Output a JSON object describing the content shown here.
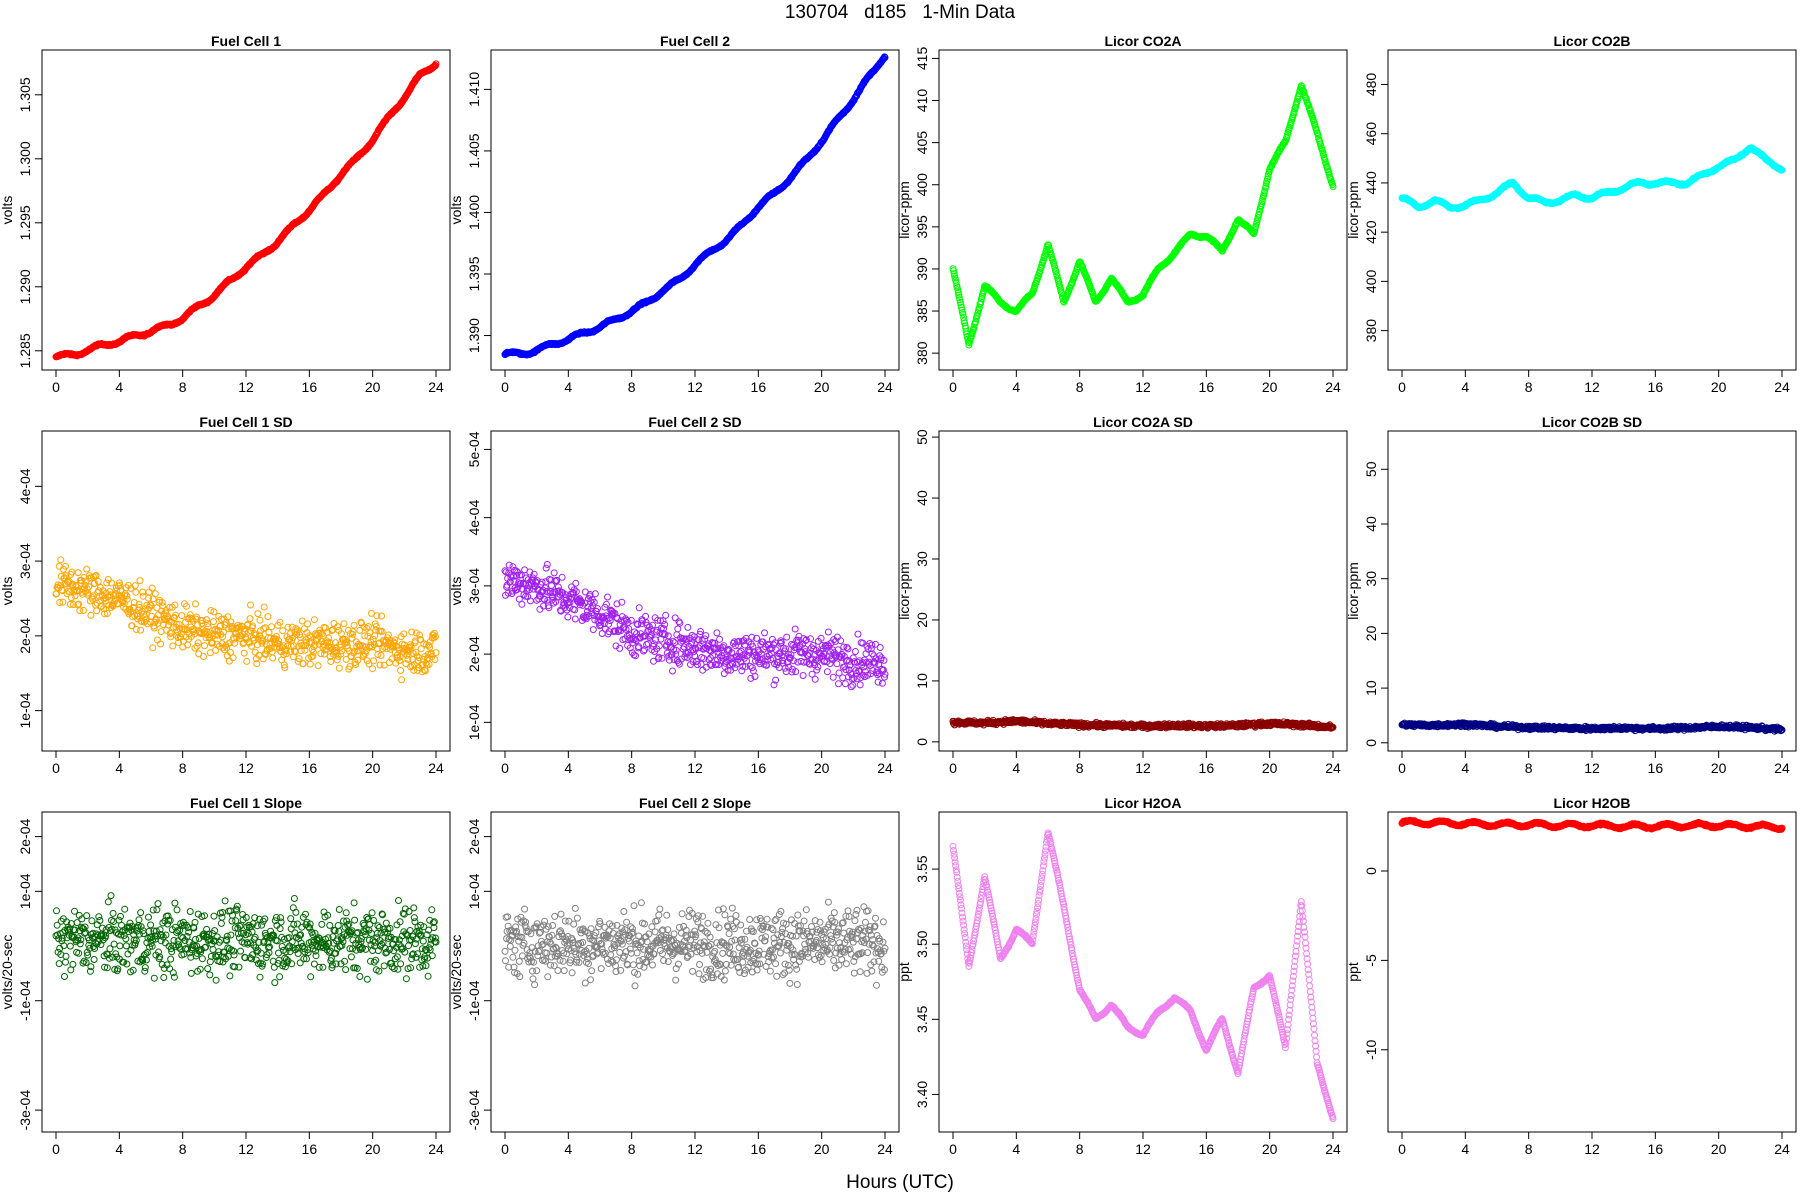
{
  "figure": {
    "title": "130704   d185   1-Min Data",
    "xlabel": "Hours (UTC)"
  },
  "chart_data": [
    {
      "id": "fc1",
      "type": "scatter",
      "title": "Fuel Cell 1",
      "ylabel": "volts",
      "color": "#ff0000",
      "xlim": [
        0,
        24
      ],
      "xticks": [
        "0",
        "4",
        "8",
        "12",
        "16",
        "20",
        "24"
      ],
      "ylim": [
        1.2835,
        1.3085
      ],
      "yticks": [
        1.285,
        1.29,
        1.295,
        1.3,
        1.305
      ],
      "ytick_labels": [
        "1.285",
        "1.290",
        "1.295",
        "1.300",
        "1.305"
      ],
      "x": [
        0,
        1,
        2,
        3,
        4,
        5,
        6,
        7,
        8,
        9,
        10,
        11,
        12,
        13,
        14,
        15,
        16,
        17,
        18,
        19,
        20,
        21,
        22,
        23,
        24
      ],
      "y": [
        1.2845,
        1.2847,
        1.285,
        1.2855,
        1.2857,
        1.2862,
        1.2865,
        1.287,
        1.2875,
        1.2885,
        1.2893,
        1.2905,
        1.2915,
        1.2925,
        1.2935,
        1.2948,
        1.296,
        1.2973,
        1.2988,
        1.3,
        1.3015,
        1.3032,
        1.3048,
        1.3065,
        1.3075
      ]
    },
    {
      "id": "fc2",
      "type": "scatter",
      "title": "Fuel Cell 2",
      "ylabel": "volts",
      "color": "#0000ff",
      "xlim": [
        0,
        24
      ],
      "xticks": [
        "0",
        "4",
        "8",
        "12",
        "16",
        "20",
        "24"
      ],
      "ylim": [
        1.3872,
        1.4132
      ],
      "yticks": [
        1.39,
        1.395,
        1.4,
        1.405,
        1.41
      ],
      "ytick_labels": [
        "1.390",
        "1.395",
        "1.400",
        "1.405",
        "1.410"
      ],
      "x": [
        0,
        1,
        2,
        3,
        4,
        5,
        6,
        7,
        8,
        9,
        10,
        11,
        12,
        13,
        14,
        15,
        16,
        17,
        18,
        19,
        20,
        21,
        22,
        23,
        24
      ],
      "y": [
        1.3885,
        1.3885,
        1.3888,
        1.3893,
        1.3897,
        1.3902,
        1.3907,
        1.3913,
        1.392,
        1.3927,
        1.3937,
        1.3945,
        1.3958,
        1.3968,
        1.3978,
        1.399,
        1.4005,
        1.4015,
        1.4028,
        1.4042,
        1.4058,
        1.4075,
        1.4092,
        1.411,
        1.4128
      ]
    },
    {
      "id": "co2a",
      "type": "scatter",
      "title": "Licor CO2A",
      "ylabel": "licor-ppm",
      "color": "#00ff00",
      "xlim": [
        0,
        24
      ],
      "xticks": [
        "0",
        "4",
        "8",
        "12",
        "16",
        "20",
        "24"
      ],
      "ylim": [
        378,
        416
      ],
      "yticks": [
        380,
        385,
        390,
        395,
        400,
        405,
        410,
        415
      ],
      "ytick_labels": [
        "380",
        "385",
        "390",
        "395",
        "400",
        "405",
        "410",
        "415"
      ],
      "x": [
        0,
        1,
        2,
        3,
        4,
        5,
        6,
        7,
        8,
        9,
        10,
        11,
        12,
        13,
        14,
        15,
        16,
        17,
        18,
        19,
        20,
        21,
        22,
        23,
        24
      ],
      "y": [
        390,
        381,
        388,
        386,
        385,
        387,
        393,
        386,
        391,
        386,
        389,
        386,
        387,
        390,
        392,
        394,
        394,
        392,
        396,
        394,
        402,
        405,
        412,
        406,
        400
      ]
    },
    {
      "id": "co2b",
      "type": "scatter",
      "title": "Licor CO2B",
      "ylabel": "licor-ppm",
      "color": "#00ffff",
      "xlim": [
        0,
        24
      ],
      "xticks": [
        "0",
        "4",
        "8",
        "12",
        "16",
        "20",
        "24"
      ],
      "ylim": [
        364,
        494
      ],
      "yticks": [
        380,
        400,
        420,
        440,
        460,
        480
      ],
      "ytick_labels": [
        "380",
        "400",
        "420",
        "440",
        "460",
        "480"
      ],
      "x": [
        0,
        1,
        2,
        3,
        4,
        5,
        6,
        7,
        8,
        9,
        10,
        11,
        12,
        13,
        14,
        15,
        16,
        17,
        18,
        19,
        20,
        21,
        22,
        23,
        24
      ],
      "y": [
        434,
        430,
        433,
        430,
        431,
        433,
        436,
        440,
        434,
        432,
        433,
        435,
        434,
        436,
        438,
        440,
        440,
        440,
        440,
        443,
        447,
        449,
        455,
        449,
        446
      ]
    },
    {
      "id": "fc1sd",
      "type": "scatter",
      "title": "Fuel Cell 1 SD",
      "ylabel": "volts",
      "color": "#ffa500",
      "xlim": [
        0,
        24
      ],
      "xticks": [
        "0",
        "4",
        "8",
        "12",
        "16",
        "20",
        "24"
      ],
      "ylim": [
        4.6e-05,
        0.000474
      ],
      "yticks": [
        0.0001,
        0.0002,
        0.0003,
        0.0004
      ],
      "ytick_labels": [
        "1e-04",
        "2e-04",
        "3e-04",
        "4e-04"
      ],
      "x": [
        0,
        2,
        4,
        6,
        8,
        10,
        12,
        14,
        16,
        18,
        20,
        22,
        24
      ],
      "y": [
        0.00027,
        0.00026,
        0.00025,
        0.00023,
        0.00021,
        0.0002,
        0.0002,
        0.00019,
        0.00019,
        0.00019,
        0.00019,
        0.00018,
        0.00018
      ]
    },
    {
      "id": "fc2sd",
      "type": "scatter",
      "title": "Fuel Cell 2 SD",
      "ylabel": "volts",
      "color": "#a020f0",
      "xlim": [
        0,
        24
      ],
      "xticks": [
        "0",
        "4",
        "8",
        "12",
        "16",
        "20",
        "24"
      ],
      "ylim": [
        5.8e-05,
        0.000527
      ],
      "yticks": [
        0.0001,
        0.0002,
        0.0003,
        0.0004,
        0.0005
      ],
      "ytick_labels": [
        "1e-04",
        "2e-04",
        "3e-04",
        "4e-04",
        "5e-04"
      ],
      "x": [
        0,
        2,
        4,
        6,
        8,
        10,
        12,
        14,
        16,
        18,
        20,
        22,
        24
      ],
      "y": [
        0.00031,
        0.0003,
        0.00028,
        0.00026,
        0.00023,
        0.00022,
        0.00021,
        0.0002,
        0.0002,
        0.0002,
        0.0002,
        0.00019,
        0.00019
      ]
    },
    {
      "id": "co2asd",
      "type": "scatter",
      "title": "Licor CO2A SD",
      "ylabel": "licor-ppm",
      "color": "#8b0000",
      "xlim": [
        0,
        24
      ],
      "xticks": [
        "0",
        "4",
        "8",
        "12",
        "16",
        "20",
        "24"
      ],
      "ylim": [
        -1.5,
        51
      ],
      "yticks": [
        0,
        10,
        20,
        30,
        40,
        50
      ],
      "ytick_labels": [
        "0",
        "10",
        "20",
        "30",
        "40",
        "50"
      ],
      "x": [
        0,
        2,
        4,
        6,
        8,
        10,
        12,
        14,
        16,
        18,
        20,
        22,
        24
      ],
      "y": [
        3.2,
        3.1,
        3.4,
        3,
        2.8,
        2.7,
        2.6,
        2.7,
        2.6,
        2.7,
        3,
        2.8,
        2.4
      ]
    },
    {
      "id": "co2bsd",
      "type": "scatter",
      "title": "Licor CO2B SD",
      "ylabel": "licor-ppm",
      "color": "#000080",
      "xlim": [
        0,
        24
      ],
      "xticks": [
        "0",
        "4",
        "8",
        "12",
        "16",
        "20",
        "24"
      ],
      "ylim": [
        -1.5,
        57
      ],
      "yticks": [
        0,
        10,
        20,
        30,
        40,
        50
      ],
      "ytick_labels": [
        "0",
        "10",
        "20",
        "30",
        "40",
        "50"
      ],
      "x": [
        0,
        2,
        4,
        6,
        8,
        10,
        12,
        14,
        16,
        18,
        20,
        22,
        24
      ],
      "y": [
        3.3,
        3.2,
        3.4,
        3,
        2.8,
        2.7,
        2.6,
        2.7,
        2.6,
        2.7,
        3,
        2.8,
        2.4
      ]
    },
    {
      "id": "fc1slope",
      "type": "scatter",
      "title": "Fuel Cell 1 Slope",
      "ylabel": "volts/20-sec",
      "color": "#006400",
      "xlim": [
        0,
        24
      ],
      "xticks": [
        "0",
        "4",
        "8",
        "12",
        "16",
        "20",
        "24"
      ],
      "ylim": [
        -0.00034,
        0.000245
      ],
      "yticks": [
        -0.0003,
        -0.0001,
        0.0001,
        0.0002
      ],
      "ytick_labels": [
        "-3e-04",
        "-1e-04",
        "1e-04",
        "2e-04"
      ],
      "x": [
        0,
        4,
        8,
        12,
        16,
        20,
        24
      ],
      "y": [
        1e-05,
        1e-05,
        1e-05,
        1e-05,
        1e-05,
        1e-05,
        1e-05
      ]
    },
    {
      "id": "fc2slope",
      "type": "scatter",
      "title": "Fuel Cell 2 Slope",
      "ylabel": "volts/20-sec",
      "color": "#808080",
      "xlim": [
        0,
        24
      ],
      "xticks": [
        "0",
        "4",
        "8",
        "12",
        "16",
        "20",
        "24"
      ],
      "ylim": [
        -0.00034,
        0.000245
      ],
      "yticks": [
        -0.0003,
        -0.0001,
        0.0001,
        0.0002
      ],
      "ytick_labels": [
        "-3e-04",
        "-1e-04",
        "1e-04",
        "2e-04"
      ],
      "x": [
        0,
        4,
        8,
        12,
        16,
        20,
        24
      ],
      "y": [
        5e-06,
        5e-06,
        5e-06,
        5e-06,
        5e-06,
        5e-06,
        5e-06
      ]
    },
    {
      "id": "h2oa",
      "type": "scatter",
      "title": "Licor H2OA",
      "ylabel": "ppt",
      "color": "#ee82ee",
      "xlim": [
        0,
        24
      ],
      "xticks": [
        "0",
        "4",
        "8",
        "12",
        "16",
        "20",
        "24"
      ],
      "ylim": [
        3.375,
        3.588
      ],
      "yticks": [
        3.4,
        3.45,
        3.5,
        3.55
      ],
      "ytick_labels": [
        "3.40",
        "3.45",
        "3.50",
        "3.55"
      ],
      "x": [
        0,
        1,
        2,
        3,
        4,
        5,
        6,
        7,
        8,
        9,
        10,
        11,
        12,
        13,
        14,
        15,
        16,
        17,
        18,
        19,
        20,
        21,
        22,
        23,
        24
      ],
      "y": [
        3.565,
        3.485,
        3.545,
        3.49,
        3.51,
        3.5,
        3.575,
        3.525,
        3.47,
        3.45,
        3.46,
        3.445,
        3.44,
        3.455,
        3.465,
        3.455,
        3.43,
        3.45,
        3.415,
        3.47,
        3.48,
        3.43,
        3.53,
        3.42,
        3.385
      ]
    },
    {
      "id": "h2ob",
      "type": "scatter",
      "title": "Licor H2OB",
      "ylabel": "ppt",
      "color": "#ff0000",
      "xlim": [
        0,
        24
      ],
      "xticks": [
        "0",
        "4",
        "8",
        "12",
        "16",
        "20",
        "24"
      ],
      "ylim": [
        -14.6,
        3.3
      ],
      "yticks": [
        -10,
        -5,
        0
      ],
      "ytick_labels": [
        "-10",
        "-5",
        "0"
      ],
      "x": [
        0,
        2,
        4,
        6,
        8,
        10,
        12,
        14,
        16,
        18,
        20,
        22,
        24
      ],
      "y": [
        2.7,
        2.7,
        2.65,
        2.6,
        2.6,
        2.55,
        2.55,
        2.5,
        2.5,
        2.55,
        2.55,
        2.5,
        2.45
      ]
    }
  ]
}
